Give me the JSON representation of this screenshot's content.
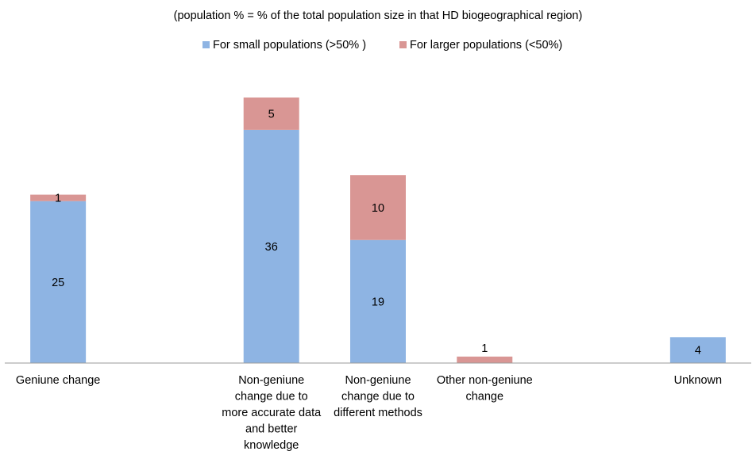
{
  "chart_data": {
    "type": "bar",
    "stacked": true,
    "subtitle": "(population % = % of the total population size in that HD biogeographical region)",
    "categories": [
      [
        "Geniune change"
      ],
      [
        "Non-geniune",
        "change due to",
        "more accurate data",
        "and better",
        "knowledge"
      ],
      [
        "Non-geniune",
        "change due to",
        "different methods"
      ],
      [
        "Other non-geniune",
        "change"
      ],
      [
        "Unknown"
      ]
    ],
    "category_slots": [
      0,
      2,
      3,
      4,
      6
    ],
    "slot_count": 7,
    "series": [
      {
        "name": "For small populations (>50% )",
        "color": "#8EB4E3",
        "values": [
          25,
          36,
          19,
          0,
          4
        ]
      },
      {
        "name": "For larger populations (<50%)",
        "color": "#D99694",
        "values": [
          1,
          5,
          10,
          1,
          0
        ]
      }
    ],
    "ylim": [
      0,
      44
    ],
    "grid": false,
    "legend_position": "top",
    "data_label_rule": "Top data label is printed above bar if segment is very small."
  }
}
